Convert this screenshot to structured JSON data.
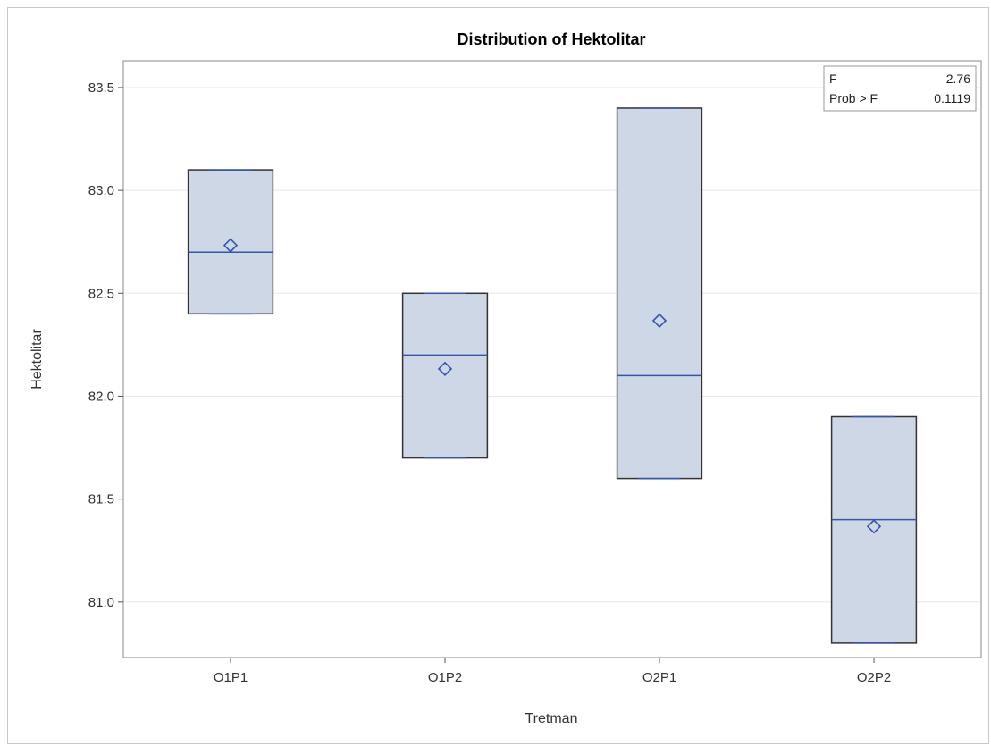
{
  "chart_data": {
    "type": "box",
    "title": "Distribution of Hektolitar",
    "xlabel": "Tretman",
    "ylabel": "Hektolitar",
    "ylim": [
      80.73,
      83.63
    ],
    "yticks": [
      81.0,
      81.5,
      82.0,
      82.5,
      83.0,
      83.5
    ],
    "ytick_labels": [
      "81.0",
      "81.5",
      "82.0",
      "82.5",
      "83.0",
      "83.5"
    ],
    "grid": true,
    "categories": [
      "O1P1",
      "O1P2",
      "O2P1",
      "O2P2"
    ],
    "boxes": [
      {
        "category": "O1P1",
        "min": 82.4,
        "q1": 82.4,
        "median": 82.7,
        "q3": 83.1,
        "max": 83.1,
        "mean": 82.733
      },
      {
        "category": "O1P2",
        "min": 81.7,
        "q1": 81.7,
        "median": 82.2,
        "q3": 82.5,
        "max": 82.5,
        "mean": 82.133
      },
      {
        "category": "O2P1",
        "min": 81.6,
        "q1": 81.6,
        "median": 82.1,
        "q3": 83.4,
        "max": 83.4,
        "mean": 82.367
      },
      {
        "category": "O2P2",
        "min": 80.8,
        "q1": 80.8,
        "median": 81.4,
        "q3": 81.9,
        "max": 81.9,
        "mean": 81.367
      }
    ],
    "stats_box": {
      "position": "top-right",
      "rows": [
        {
          "label": "F",
          "value": "2.76"
        },
        {
          "label": "Prob > F",
          "value": "0.1119"
        }
      ]
    },
    "colors": {
      "box_fill": "#cdd7e6",
      "box_edge": "#333333",
      "median_line": "#3355aa",
      "mean_marker": "#3355aa",
      "grid": "#e8e8e8"
    }
  }
}
